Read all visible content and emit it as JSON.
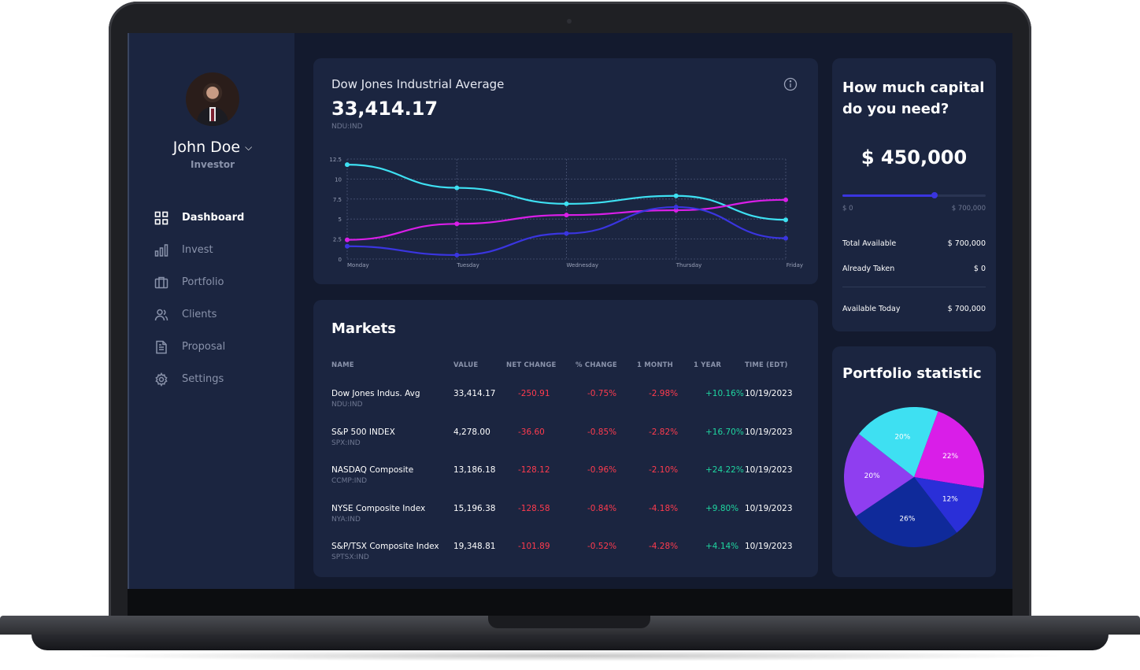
{
  "user": {
    "name": "John Doe",
    "role": "Investor"
  },
  "nav": [
    {
      "label": "Dashboard",
      "icon": "grid-icon",
      "active": true
    },
    {
      "label": "Invest",
      "icon": "bar-chart-icon",
      "active": false
    },
    {
      "label": "Portfolio",
      "icon": "briefcase-icon",
      "active": false
    },
    {
      "label": "Clients",
      "icon": "users-icon",
      "active": false
    },
    {
      "label": "Proposal",
      "icon": "document-icon",
      "active": false
    },
    {
      "label": "Settings",
      "icon": "gear-icon",
      "active": false
    }
  ],
  "dow": {
    "title": "Dow Jones Industrial Average",
    "value": "33,414.17",
    "ticker": "NDU:IND"
  },
  "chart_data": {
    "type": "line",
    "categories": [
      "Monday",
      "Tuesday",
      "Wednesday",
      "Thursday",
      "Friday"
    ],
    "yticks": [
      "0",
      "2.5",
      "5",
      "7.5",
      "10",
      "12.5"
    ],
    "ylim": [
      0,
      12.5
    ],
    "grid": true,
    "series": [
      {
        "color": "#3ee0f2",
        "values": [
          11.8,
          8.9,
          6.9,
          7.9,
          4.9
        ]
      },
      {
        "color": "#d91ee8",
        "values": [
          2.4,
          4.4,
          5.5,
          6.1,
          7.4
        ]
      },
      {
        "color": "#3a35e0",
        "values": [
          1.6,
          0.5,
          3.2,
          6.5,
          2.6
        ]
      }
    ]
  },
  "markets": {
    "title": "Markets",
    "columns": [
      "NAME",
      "VALUE",
      "NET CHANGE",
      "% CHANGE",
      "1 MONTH",
      "1 YEAR",
      "TIME (EDT)"
    ],
    "rows": [
      {
        "name": "Dow Jones Indus. Avg",
        "ticker": "NDU:IND",
        "value": "33,414.17",
        "net": "-250.91",
        "pct": "-0.75%",
        "month": "-2.98%",
        "year": "+10.16%",
        "time": "10/19/2023"
      },
      {
        "name": "S&P 500 INDEX",
        "ticker": "SPX:IND",
        "value": "4,278.00",
        "net": "-36.60",
        "pct": "-0.85%",
        "month": "-2.82%",
        "year": "+16.70%",
        "time": "10/19/2023"
      },
      {
        "name": "NASDAQ Composite",
        "ticker": "CCMP:IND",
        "value": "13,186.18",
        "net": "-128.12",
        "pct": "-0.96%",
        "month": "-2.10%",
        "year": "+24.22%",
        "time": "10/19/2023"
      },
      {
        "name": "NYSE Composite Index",
        "ticker": "NYA:IND",
        "value": "15,196.38",
        "net": "-128.58",
        "pct": "-0.84%",
        "month": "-4.18%",
        "year": "+9.80%",
        "time": "10/19/2023"
      },
      {
        "name": "S&P/TSX Composite Index",
        "ticker": "SPTSX:IND",
        "value": "19,348.81",
        "net": "-101.89",
        "pct": "-0.52%",
        "month": "-4.28%",
        "year": "+4.14%",
        "time": "10/19/2023"
      }
    ]
  },
  "capital": {
    "title": "How much capital do you need?",
    "amount": "$ 450,000",
    "slider_fraction": 0.643,
    "min_label": "$ 0",
    "max_label": "$ 700,000",
    "total_available_label": "Total Available",
    "total_available_value": "$ 700,000",
    "already_taken_label": "Already Taken",
    "already_taken_value": "$ 0",
    "available_today_label": "Available Today",
    "available_today_value": "$ 700,000"
  },
  "portfolio": {
    "title": "Portfolio statistic",
    "slices": [
      {
        "label": "22%",
        "value": 22,
        "color": "#d91ee8"
      },
      {
        "label": "12%",
        "value": 12,
        "color": "#2a2fd8"
      },
      {
        "label": "26%",
        "value": 26,
        "color": "#0f2a9a"
      },
      {
        "label": "20%",
        "value": 20,
        "color": "#8f3ef0"
      },
      {
        "label": "20%",
        "value": 20,
        "color": "#3ee0f2"
      }
    ]
  }
}
